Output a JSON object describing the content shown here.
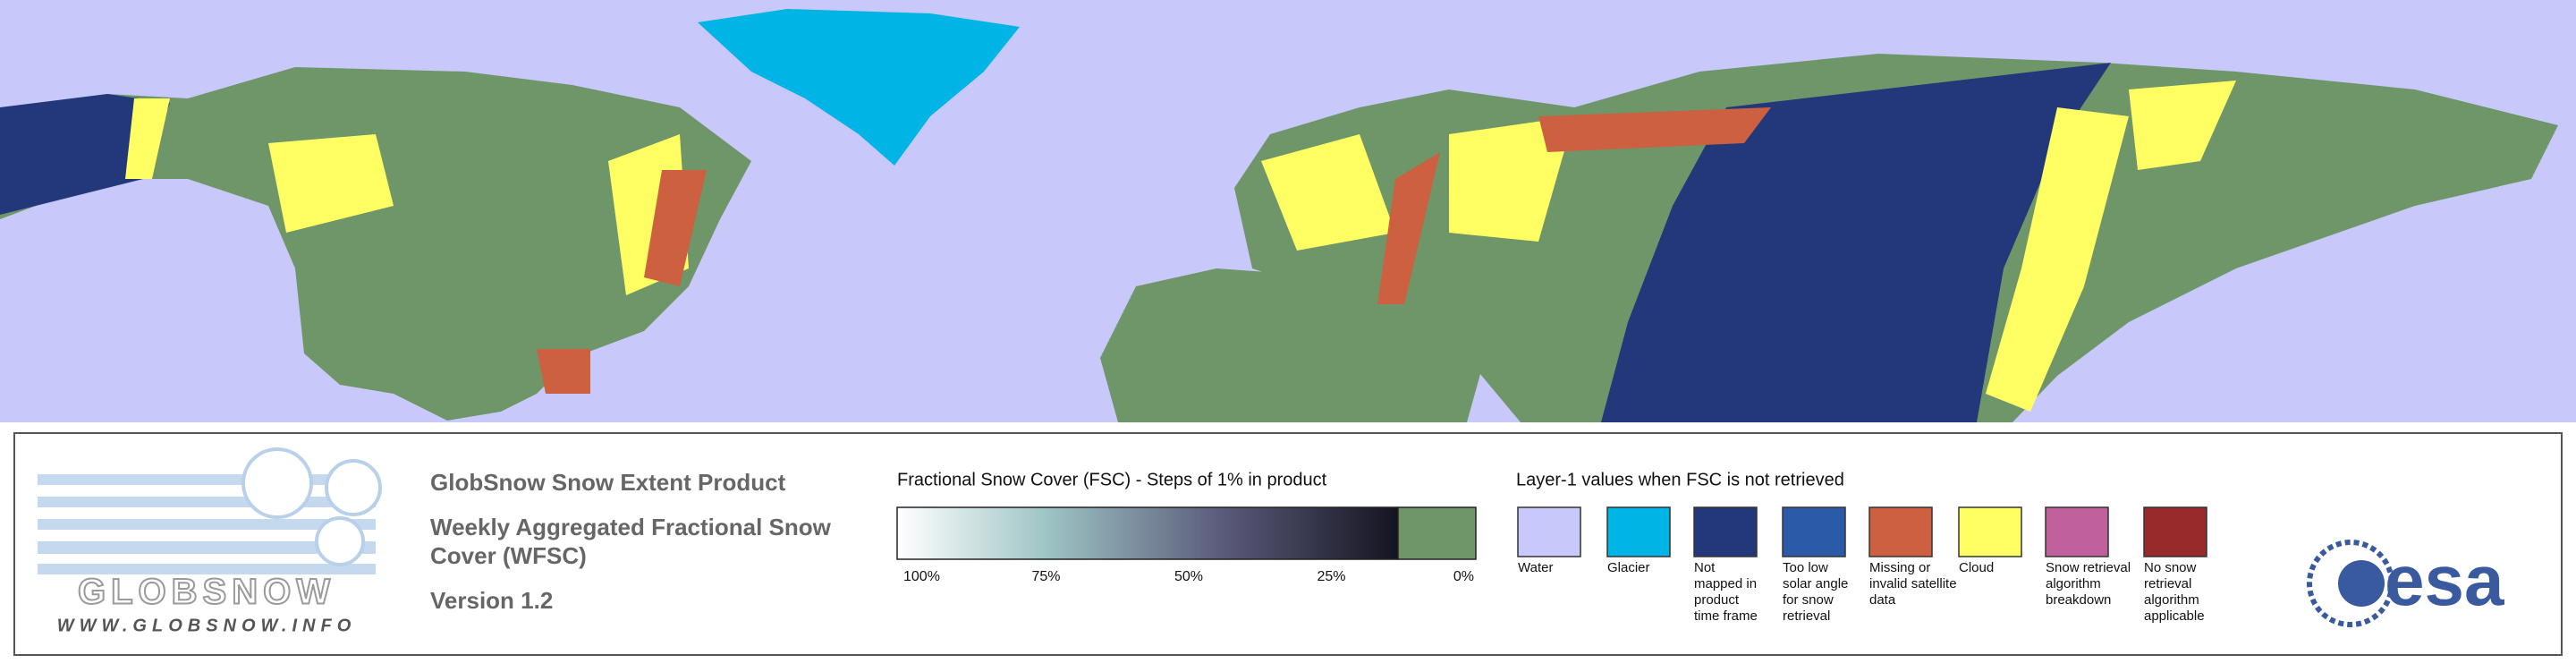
{
  "logo": {
    "name": "GLOBSNOW",
    "url": "WWW.GLOBSNOW.INFO"
  },
  "header": {
    "title": "GlobSnow Snow Extent Product",
    "subtitle_lines": [
      "Weekly Aggregated Fractional Snow",
      "Cover (WFSC)"
    ],
    "version": "Version 1.2"
  },
  "colorbar": {
    "title": "Fractional Snow Cover (FSC) - Steps of 1% in product",
    "ticks": [
      "100%",
      "75%",
      "50%",
      "25%",
      "0%"
    ]
  },
  "layer_legend": {
    "title": "Layer-1 values when FSC is not retrieved",
    "items": [
      {
        "color": "#c8c8fa",
        "label_lines": [
          "Water"
        ]
      },
      {
        "color": "#00b4e6",
        "label_lines": [
          "Glacier"
        ]
      },
      {
        "color": "#22387a",
        "label_lines": [
          "Not",
          "mapped in",
          "product",
          "time frame"
        ]
      },
      {
        "color": "#2a5aa8",
        "label_lines": [
          "Too low",
          "solar angle",
          "for snow",
          "retrieval"
        ]
      },
      {
        "color": "#cc6040",
        "label_lines": [
          "Missing or",
          "invalid satellite",
          "data"
        ]
      },
      {
        "color": "#ffff64",
        "label_lines": [
          "Cloud"
        ]
      },
      {
        "color": "#c0609c",
        "label_lines": [
          "Snow retrieval",
          "algorithm",
          "breakdown"
        ]
      },
      {
        "color": "#982a2c",
        "label_lines": [
          "No snow",
          "retrieval",
          "algorithm",
          "applicable"
        ]
      }
    ]
  },
  "agency_logo": "esa"
}
